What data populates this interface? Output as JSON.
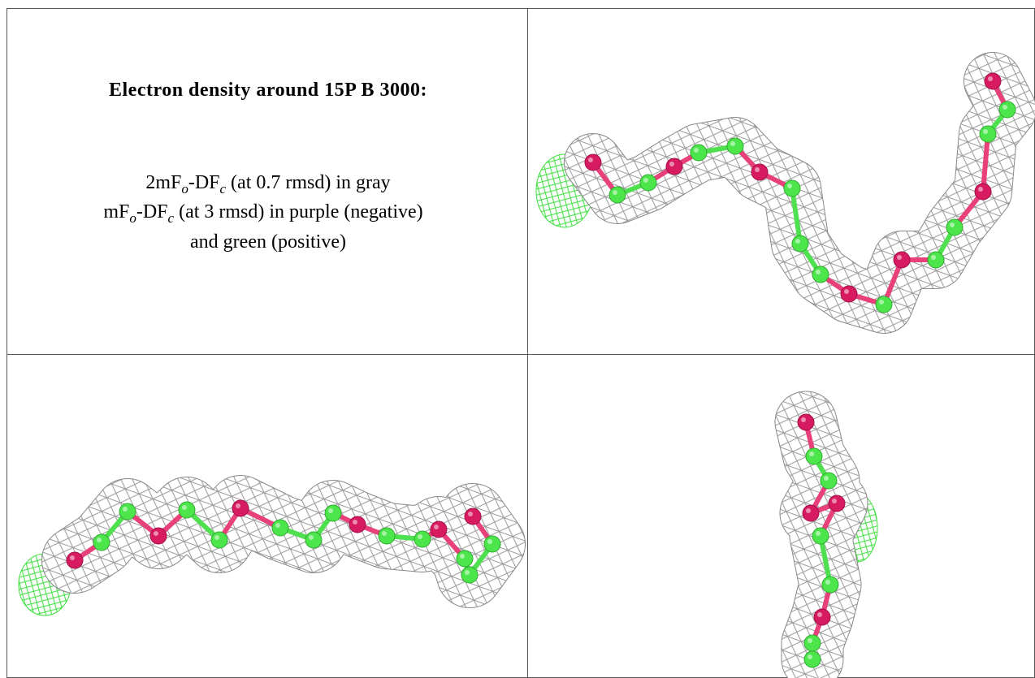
{
  "header": {
    "title": "Electron density around 15P B 3000:"
  },
  "legend": {
    "lines": [
      [
        "2mF",
        "o",
        "-DF",
        "c",
        " (at 0.7 rmsd) in gray"
      ],
      [
        "mF",
        "o",
        "-DF",
        "c",
        " (at 3 rmsd) in purple (negative)"
      ],
      [
        "and green (positive)"
      ]
    ]
  }
}
